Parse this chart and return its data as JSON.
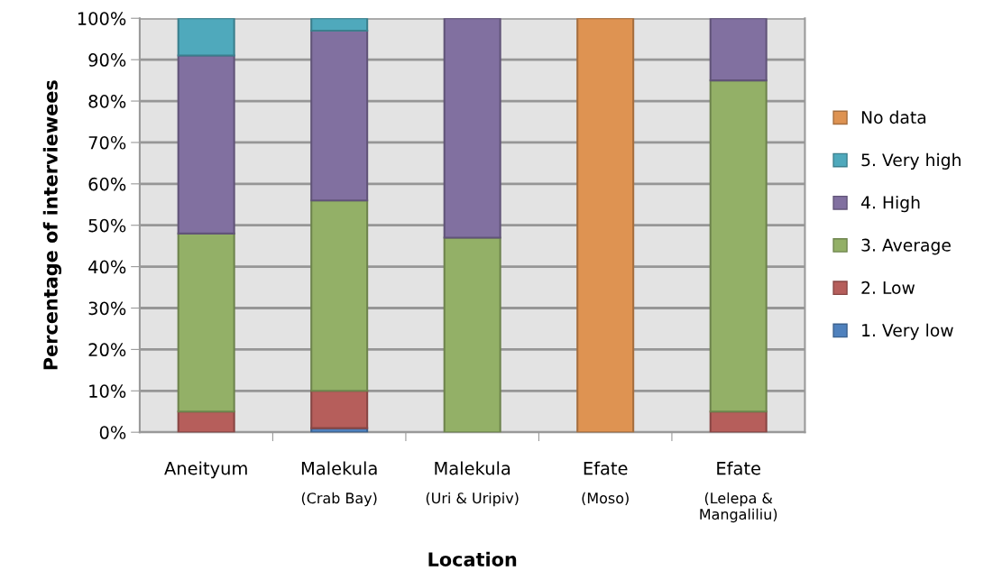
{
  "chart_data": {
    "type": "bar",
    "stacked": true,
    "xlabel": "Location",
    "ylabel": "Percentage of interviewees",
    "categories": [
      "Aneityum",
      "Malekula\n(Crab Bay)",
      "Malekula\n(Uri & Uripiv)",
      "Efate\n(Moso)",
      "Efate\n(Lelepa &\nMangaliliu)"
    ],
    "series": [
      {
        "name": "1. Very low",
        "color": "#4f81bd",
        "values": [
          null,
          1,
          null,
          null,
          null
        ]
      },
      {
        "name": "2. Low",
        "color": "#b65e5b",
        "values": [
          5,
          9,
          null,
          null,
          5
        ]
      },
      {
        "name": "3. Average",
        "color": "#93b067",
        "values": [
          43,
          46,
          47,
          null,
          80
        ]
      },
      {
        "name": "4. High",
        "color": "#8170a0",
        "values": [
          43,
          41,
          53,
          null,
          15
        ]
      },
      {
        "name": "5. Very high",
        "color": "#4fa9bc",
        "values": [
          9,
          3,
          null,
          null,
          null
        ]
      },
      {
        "name": "No data",
        "color": "#de9352",
        "values": [
          null,
          null,
          null,
          100,
          null
        ]
      }
    ],
    "ylim": [
      0,
      100
    ],
    "yticks": [
      {
        "value": 0,
        "label": "0%"
      },
      {
        "value": 10,
        "label": "10%"
      },
      {
        "value": 20,
        "label": "20%"
      },
      {
        "value": 30,
        "label": "30%"
      },
      {
        "value": 40,
        "label": "40%"
      },
      {
        "value": 50,
        "label": "50%"
      },
      {
        "value": 60,
        "label": "60%"
      },
      {
        "value": 70,
        "label": "70%"
      },
      {
        "value": 80,
        "label": "80%"
      },
      {
        "value": 90,
        "label": "90%"
      },
      {
        "value": 100,
        "label": "100%"
      }
    ],
    "grid": "y",
    "legend": "right"
  }
}
